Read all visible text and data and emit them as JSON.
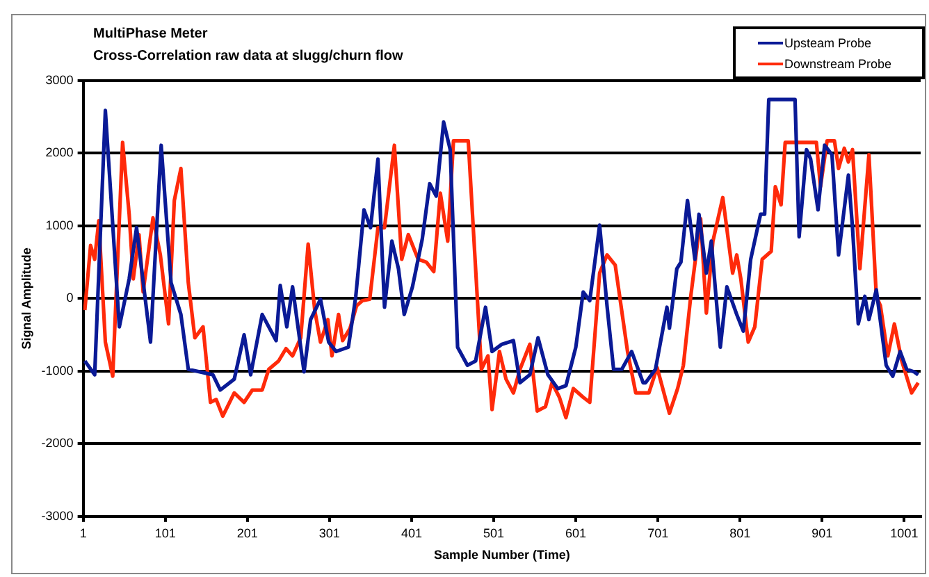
{
  "chart_data": {
    "type": "line",
    "title": "MultiPhase Meter",
    "subtitle": "Cross-Correlation raw data at slugg/churn flow",
    "xlabel": "Sample Number (Time)",
    "ylabel": "Signal Amplitude",
    "xlim": [
      1,
      1021
    ],
    "xticks": [
      1,
      101,
      201,
      301,
      401,
      501,
      601,
      701,
      801,
      901,
      1001
    ],
    "ylim": [
      -3000,
      3000
    ],
    "yticks": [
      -3000,
      -2000,
      -1000,
      0,
      1000,
      2000,
      3000
    ],
    "grid": "y",
    "legend": "top right",
    "marker": "none",
    "line_style": "solid",
    "series": [
      {
        "name": "Upsteam Probe",
        "color": "#0a1a96",
        "x": [
          3,
          15,
          28,
          45,
          57,
          66,
          83,
          96,
          108,
          120,
          129,
          159,
          168,
          185,
          197,
          205,
          219,
          236,
          241,
          249,
          256,
          270,
          278,
          290,
          300,
          309,
          324,
          333,
          343,
          351,
          360,
          368,
          377,
          385,
          392,
          402,
          414,
          423,
          431,
          440,
          448,
          457,
          469,
          479,
          491,
          499,
          511,
          525,
          533,
          545,
          555,
          567,
          579,
          589,
          601,
          610,
          618,
          630,
          639,
          647,
          657,
          669,
          683,
          686,
          698,
          712,
          715,
          724,
          729,
          737,
          746,
          751,
          760,
          766,
          777,
          785,
          797,
          805,
          814,
          826,
          831,
          836,
          868,
          873,
          882,
          887,
          896,
          904,
          913,
          921,
          933,
          938,
          945,
          953,
          958,
          967,
          979,
          987,
          996,
          1004,
          1013,
          1018
        ],
        "values": [
          -860,
          -1050,
          2590,
          -390,
          270,
          975,
          -600,
          2110,
          220,
          -220,
          -975,
          -1050,
          -1260,
          -1110,
          -500,
          -1050,
          -220,
          -580,
          180,
          -390,
          160,
          -1010,
          -290,
          -10,
          -600,
          -730,
          -670,
          30,
          1220,
          975,
          1920,
          -120,
          790,
          410,
          -220,
          160,
          820,
          1580,
          1410,
          2430,
          2050,
          -670,
          -920,
          -860,
          -120,
          -730,
          -630,
          -580,
          -1160,
          -1050,
          -540,
          -1050,
          -1240,
          -1200,
          -670,
          90,
          -30,
          1010,
          -100,
          -975,
          -975,
          -730,
          -1160,
          -1160,
          -975,
          -120,
          -410,
          410,
          500,
          1350,
          540,
          1160,
          350,
          790,
          -670,
          160,
          -220,
          -450,
          540,
          1160,
          1160,
          2740,
          2740,
          850,
          2050,
          1920,
          1220,
          2110,
          1980,
          600,
          1700,
          975,
          -350,
          30,
          -290,
          120,
          -920,
          -1070,
          -730,
          -975,
          -1010,
          -1050
        ]
      },
      {
        "name": "Downstream Probe",
        "color": "#ff2a0a",
        "x": [
          3,
          10,
          15,
          20,
          28,
          37,
          49,
          57,
          62,
          69,
          74,
          86,
          95,
          105,
          112,
          120,
          129,
          137,
          147,
          156,
          163,
          171,
          185,
          197,
          207,
          219,
          227,
          239,
          248,
          256,
          266,
          275,
          283,
          290,
          299,
          304,
          312,
          317,
          326,
          334,
          341,
          350,
          360,
          368,
          380,
          389,
          397,
          409,
          419,
          428,
          436,
          445,
          452,
          470,
          486,
          494,
          499,
          508,
          516,
          525,
          533,
          545,
          554,
          564,
          572,
          581,
          589,
          598,
          610,
          618,
          630,
          639,
          649,
          664,
          674,
          690,
          700,
          715,
          725,
          732,
          741,
          753,
          760,
          768,
          780,
          792,
          797,
          802,
          811,
          819,
          828,
          839,
          844,
          851,
          856,
          894,
          899,
          907,
          916,
          921,
          928,
          933,
          938,
          947,
          958,
          967,
          972,
          981,
          989,
          998,
          1010,
          1018
        ],
        "values": [
          -160,
          730,
          540,
          1070,
          -600,
          -1070,
          2150,
          1160,
          270,
          880,
          90,
          1110,
          600,
          -350,
          1350,
          1790,
          220,
          -540,
          -390,
          -1430,
          -1390,
          -1620,
          -1300,
          -1430,
          -1260,
          -1260,
          -975,
          -860,
          -690,
          -790,
          -540,
          750,
          -160,
          -600,
          -290,
          -790,
          -220,
          -580,
          -410,
          -100,
          -30,
          -10,
          975,
          975,
          2110,
          540,
          880,
          540,
          500,
          370,
          1450,
          790,
          2170,
          2170,
          -975,
          -790,
          -1530,
          -730,
          -1110,
          -1300,
          -975,
          -630,
          -1550,
          -1490,
          -1160,
          -1360,
          -1640,
          -1240,
          -1360,
          -1430,
          350,
          600,
          460,
          -730,
          -1300,
          -1300,
          -950,
          -1580,
          -1240,
          -920,
          30,
          1100,
          -200,
          790,
          1390,
          350,
          600,
          270,
          -600,
          -390,
          540,
          650,
          1540,
          1290,
          2150,
          2150,
          1540,
          2170,
          2170,
          1790,
          2070,
          1880,
          2050,
          410,
          1980,
          30,
          -100,
          -790,
          -350,
          -860,
          -1300,
          -1160
        ]
      }
    ]
  }
}
